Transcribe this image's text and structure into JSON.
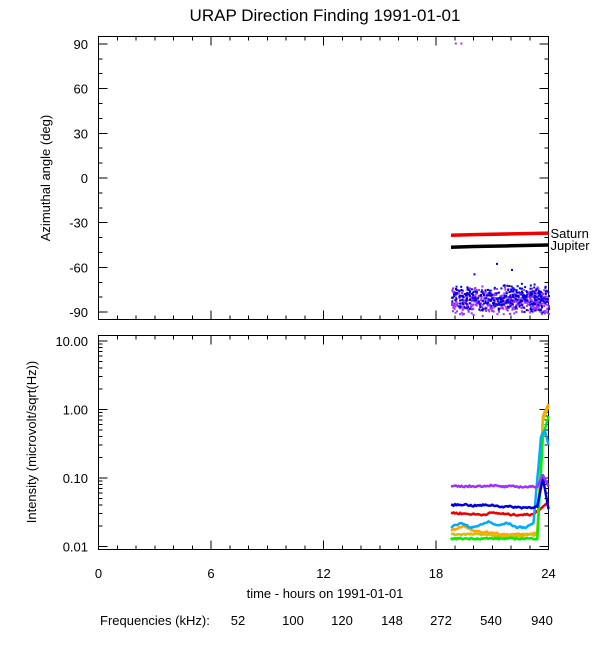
{
  "figure": {
    "title": "URAP Direction Finding  1991-01-01",
    "xlabel": "time - hours on 1991-01-01",
    "legend_label": "Frequencies (kHz):"
  },
  "chart_data": [
    {
      "type": "scatter",
      "name": "azimuth-panel",
      "title": "URAP Direction Finding  1991-01-01",
      "xlabel": "time - hours on 1991-01-01",
      "ylabel": "Azimuthal angle (deg)",
      "xlim": [
        0,
        24
      ],
      "ylim": [
        -95,
        95
      ],
      "x_ticks": [
        0,
        6,
        12,
        18,
        24
      ],
      "y_ticks": [
        90,
        60,
        30,
        0,
        -30,
        -60,
        -90
      ],
      "reference_lines": [
        {
          "name": "Saturn",
          "color": "#ee0000",
          "x": [
            18.8,
            20.0,
            22.0,
            24.0
          ],
          "y": [
            -38.5,
            -38.0,
            -37.5,
            -37.0
          ]
        },
        {
          "name": "Jupiter",
          "color": "#000000",
          "x": [
            18.8,
            20.0,
            22.0,
            24.0
          ],
          "y": [
            -46.5,
            -46.0,
            -45.5,
            -45.0
          ]
        }
      ],
      "series": [
        {
          "name": "940",
          "color": "#9b30ff",
          "x_range": [
            18.8,
            24.0
          ],
          "y_range": [
            -92,
            -72
          ],
          "isolated_points": [
            [
              19.0,
              91
            ],
            [
              19.3,
              91
            ]
          ]
        },
        {
          "name": "540",
          "color": "#0000dd",
          "x_range": [
            18.8,
            24.0
          ],
          "y_range": [
            -90,
            -70
          ],
          "isolated_points": [
            [
              21.2,
              -57
            ],
            [
              22.0,
              -61
            ],
            [
              20.0,
              -64
            ]
          ]
        }
      ]
    },
    {
      "type": "line",
      "name": "intensity-panel",
      "xlabel": "time - hours on 1991-01-01",
      "ylabel": "Intensity (microvolt/sqrt(Hz))",
      "yscale": "log",
      "xlim": [
        0,
        24
      ],
      "ylim": [
        0.009,
        12
      ],
      "x_ticks": [
        0,
        6,
        12,
        18,
        24
      ],
      "y_ticks": [
        10.0,
        1.0,
        0.1,
        0.01
      ],
      "series": [
        {
          "name": "52",
          "color": "#ee0000",
          "x": [
            18.8,
            19.5,
            20.5,
            21.0,
            21.5,
            22.0,
            22.5,
            23.0,
            23.4,
            23.8,
            24.0
          ],
          "y": [
            0.031,
            0.03,
            0.029,
            0.031,
            0.03,
            0.029,
            0.029,
            0.029,
            0.032,
            0.04,
            0.045
          ]
        },
        {
          "name": "100",
          "color": "#ffa500",
          "x": [
            18.8,
            19.5,
            20.0,
            20.5,
            21.0,
            21.5,
            22.0,
            22.5,
            23.0,
            23.4,
            23.7,
            24.0
          ],
          "y": [
            0.017,
            0.02,
            0.017,
            0.016,
            0.016,
            0.015,
            0.015,
            0.015,
            0.015,
            0.016,
            0.8,
            1.2
          ]
        },
        {
          "name": "120",
          "color": "#ddbb00",
          "x": [
            18.8,
            19.5,
            20.5,
            21.5,
            22.5,
            23.4,
            23.7,
            24.0
          ],
          "y": [
            0.015,
            0.015,
            0.015,
            0.014,
            0.014,
            0.015,
            0.7,
            1.1
          ]
        },
        {
          "name": "148",
          "color": "#00ee00",
          "x": [
            18.8,
            19.5,
            20.5,
            21.5,
            22.5,
            23.4,
            23.7,
            24.0
          ],
          "y": [
            0.013,
            0.013,
            0.013,
            0.013,
            0.013,
            0.013,
            0.4,
            0.8
          ]
        },
        {
          "name": "272",
          "color": "#00aaff",
          "x": [
            18.8,
            19.3,
            19.8,
            20.3,
            20.8,
            21.3,
            21.8,
            22.3,
            22.8,
            23.2,
            23.6,
            23.8,
            24.0
          ],
          "y": [
            0.019,
            0.022,
            0.019,
            0.02,
            0.023,
            0.02,
            0.022,
            0.019,
            0.019,
            0.022,
            0.4,
            0.5,
            0.3
          ]
        },
        {
          "name": "540",
          "color": "#0000dd",
          "x": [
            18.8,
            19.5,
            20.0,
            20.5,
            21.0,
            21.5,
            22.0,
            22.5,
            23.0,
            23.4,
            23.7,
            23.9,
            24.0
          ],
          "y": [
            0.04,
            0.041,
            0.039,
            0.04,
            0.04,
            0.038,
            0.038,
            0.037,
            0.037,
            0.038,
            0.1,
            0.05,
            0.035
          ]
        },
        {
          "name": "940",
          "color": "#9b30ff",
          "x": [
            18.8,
            19.5,
            20.5,
            21.0,
            21.5,
            22.0,
            22.5,
            23.0,
            23.4,
            23.7,
            24.0
          ],
          "y": [
            0.075,
            0.075,
            0.076,
            0.078,
            0.074,
            0.075,
            0.074,
            0.074,
            0.075,
            0.11,
            0.075
          ]
        }
      ]
    }
  ]
}
